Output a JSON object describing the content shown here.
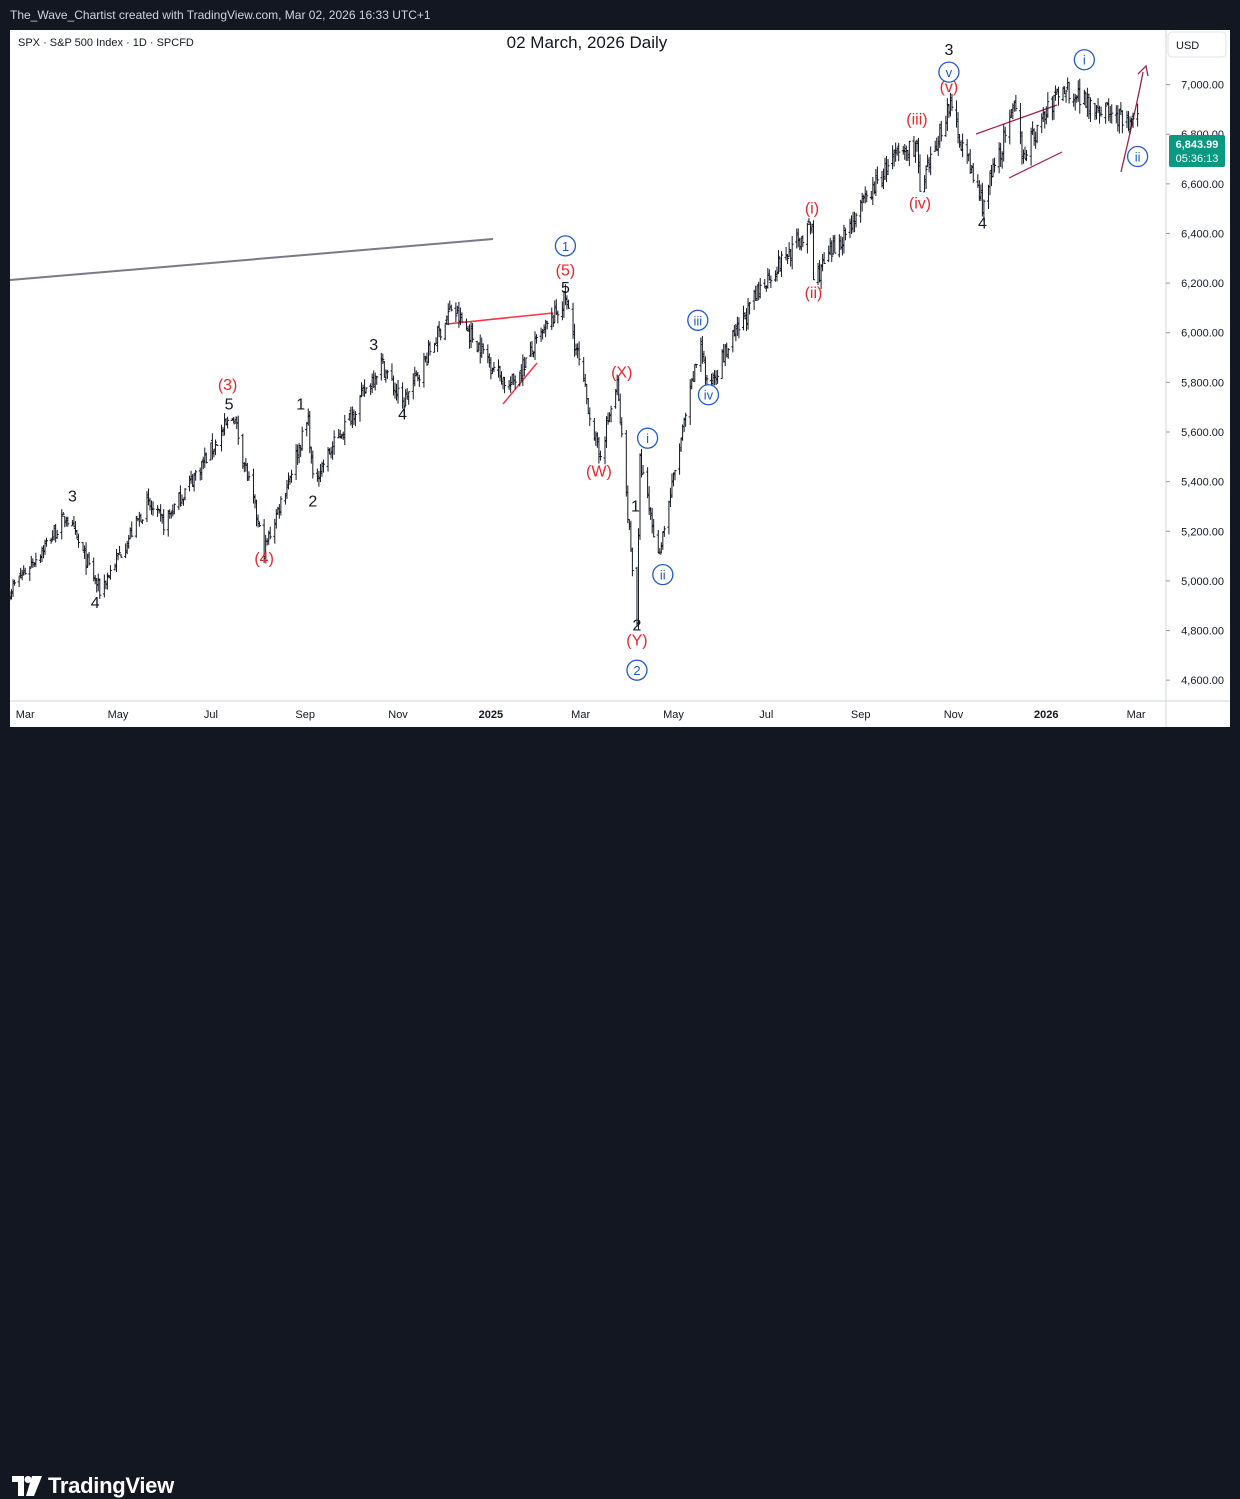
{
  "header": {
    "text": "The_Wave_Chartist created with TradingView.com, Mar 02, 2026 16:33 UTC+1"
  },
  "symbol_info": "SPX · S&P 500 Index · 1D · SPCFD",
  "chart_title": "02 March, 2026 Daily",
  "currency_button": "USD",
  "price_tag": {
    "price": "6,843.99",
    "countdown": "05:36:13"
  },
  "brand": {
    "name": "TradingView"
  },
  "colors": {
    "black_wave": "#131722",
    "red_wave": "#e8262e",
    "blue_wave": "#1e5bc6",
    "price_tag": "#089981",
    "trendline": "#787b86",
    "projection": "#a0204f"
  },
  "chart_data": {
    "type": "ohlc",
    "title": "02 March, 2026 Daily",
    "x_range": [
      "2024-02-20",
      "2026-03-20"
    ],
    "ylim": [
      4520,
      7220
    ],
    "y_ticks": [
      4600,
      4800,
      5000,
      5200,
      5400,
      5600,
      5800,
      6000,
      6200,
      6400,
      6600,
      6800,
      7000
    ],
    "y_tick_labels": [
      "4,600.00",
      "4,800.00",
      "5,000.00",
      "5,200.00",
      "5,400.00",
      "5,600.00",
      "5,800.00",
      "6,000.00",
      "6,200.00",
      "6,400.00",
      "6,600.00",
      "6,800.00",
      "7,000.00"
    ],
    "x_ticks": [
      {
        "date": "2024-03-01",
        "label": "Mar"
      },
      {
        "date": "2024-05-01",
        "label": "May"
      },
      {
        "date": "2024-07-01",
        "label": "Jul"
      },
      {
        "date": "2024-09-01",
        "label": "Sep"
      },
      {
        "date": "2024-11-01",
        "label": "Nov"
      },
      {
        "date": "2025-01-01",
        "label": "2025"
      },
      {
        "date": "2025-03-01",
        "label": "Mar"
      },
      {
        "date": "2025-05-01",
        "label": "May"
      },
      {
        "date": "2025-07-01",
        "label": "Jul"
      },
      {
        "date": "2025-09-01",
        "label": "Sep"
      },
      {
        "date": "2025-11-01",
        "label": "Nov"
      },
      {
        "date": "2026-01-01",
        "label": "2026"
      },
      {
        "date": "2026-03-01",
        "label": "Mar"
      }
    ],
    "price_path": [
      [
        "2024-02-20",
        4960
      ],
      [
        "2024-03-15",
        5150
      ],
      [
        "2024-03-28",
        5260
      ],
      [
        "2024-04-19",
        4960
      ],
      [
        "2024-05-20",
        5310
      ],
      [
        "2024-05-31",
        5230
      ],
      [
        "2024-07-16",
        5670
      ],
      [
        "2024-08-05",
        5120
      ],
      [
        "2024-09-03",
        5650
      ],
      [
        "2024-09-06",
        5400
      ],
      [
        "2024-10-21",
        5880
      ],
      [
        "2024-11-04",
        5710
      ],
      [
        "2024-12-06",
        6100
      ],
      [
        "2025-01-13",
        5780
      ],
      [
        "2025-02-19",
        6140
      ],
      [
        "2025-03-13",
        5500
      ],
      [
        "2025-03-25",
        5790
      ],
      [
        "2025-04-07",
        4840
      ],
      [
        "2025-04-09",
        5480
      ],
      [
        "2025-04-21",
        5100
      ],
      [
        "2025-05-19",
        5970
      ],
      [
        "2025-05-23",
        5780
      ],
      [
        "2025-06-30",
        6210
      ],
      [
        "2025-07-31",
        6430
      ],
      [
        "2025-08-01",
        6210
      ],
      [
        "2025-09-22",
        6700
      ],
      [
        "2025-10-08",
        6760
      ],
      [
        "2025-10-10",
        6550
      ],
      [
        "2025-10-29",
        6920
      ],
      [
        "2025-11-20",
        6520
      ],
      [
        "2025-12-11",
        6900
      ],
      [
        "2025-12-17",
        6720
      ],
      [
        "2026-01-09",
        6970
      ],
      [
        "2026-01-13",
        6990
      ],
      [
        "2026-02-24",
        6840
      ],
      [
        "2026-03-02",
        6843.99
      ]
    ],
    "last_price": 6843.99,
    "wave_labels": [
      {
        "text": "3",
        "date": "2024-04-01",
        "price": 5320,
        "color": "black"
      },
      {
        "text": "4",
        "date": "2024-04-16",
        "price": 4890,
        "color": "black"
      },
      {
        "text": "(3)",
        "date": "2024-07-12",
        "price": 5770,
        "color": "red"
      },
      {
        "text": "5",
        "date": "2024-07-13",
        "price": 5690,
        "color": "black"
      },
      {
        "text": "(4)",
        "date": "2024-08-05",
        "price": 5070,
        "color": "red"
      },
      {
        "text": "1",
        "date": "2024-08-29",
        "price": 5690,
        "color": "black"
      },
      {
        "text": "2",
        "date": "2024-09-06",
        "price": 5300,
        "color": "black"
      },
      {
        "text": "3",
        "date": "2024-10-16",
        "price": 5930,
        "color": "black"
      },
      {
        "text": "4",
        "date": "2024-11-04",
        "price": 5650,
        "color": "black"
      },
      {
        "text": "5",
        "date": "2025-02-19",
        "price": 6160,
        "color": "black"
      },
      {
        "text": "(5)",
        "date": "2025-02-19",
        "price": 6230,
        "color": "red"
      },
      {
        "text": "1",
        "date": "2025-02-19",
        "price": 6330,
        "color": "blue",
        "circled": true
      },
      {
        "text": "(W)",
        "date": "2025-03-13",
        "price": 5420,
        "color": "red"
      },
      {
        "text": "(X)",
        "date": "2025-03-28",
        "price": 5820,
        "color": "red"
      },
      {
        "text": "i",
        "date": "2025-04-14",
        "price": 5555,
        "color": "blue",
        "circled": true
      },
      {
        "text": "1",
        "date": "2025-04-06",
        "price": 5280,
        "color": "black"
      },
      {
        "text": "ii",
        "date": "2025-04-24",
        "price": 5005,
        "color": "blue",
        "circled": true
      },
      {
        "text": "2",
        "date": "2025-04-07",
        "price": 4800,
        "color": "black"
      },
      {
        "text": "(Y)",
        "date": "2025-04-07",
        "price": 4740,
        "color": "red"
      },
      {
        "text": "2",
        "date": "2025-04-07",
        "price": 4620,
        "color": "blue",
        "circled": true
      },
      {
        "text": "iii",
        "date": "2025-05-17",
        "price": 6030,
        "color": "blue",
        "circled": true
      },
      {
        "text": "iv",
        "date": "2025-05-24",
        "price": 5730,
        "color": "blue",
        "circled": true
      },
      {
        "text": "(i)",
        "date": "2025-07-31",
        "price": 6480,
        "color": "red"
      },
      {
        "text": "(ii)",
        "date": "2025-08-01",
        "price": 6140,
        "color": "red"
      },
      {
        "text": "(iii)",
        "date": "2025-10-08",
        "price": 6840,
        "color": "red"
      },
      {
        "text": "(iv)",
        "date": "2025-10-10",
        "price": 6500,
        "color": "red"
      },
      {
        "text": "(v)",
        "date": "2025-10-29",
        "price": 6970,
        "color": "red"
      },
      {
        "text": "v",
        "date": "2025-10-29",
        "price": 7030,
        "color": "blue",
        "circled": true
      },
      {
        "text": "3",
        "date": "2025-10-29",
        "price": 7120,
        "color": "black"
      },
      {
        "text": "4",
        "date": "2025-11-20",
        "price": 6420,
        "color": "black"
      },
      {
        "text": "i",
        "date": "2026-01-26",
        "price": 7080,
        "color": "blue",
        "circled": true
      },
      {
        "text": "ii",
        "date": "2026-03-02",
        "price": 6690,
        "color": "blue",
        "circled": true
      }
    ]
  }
}
